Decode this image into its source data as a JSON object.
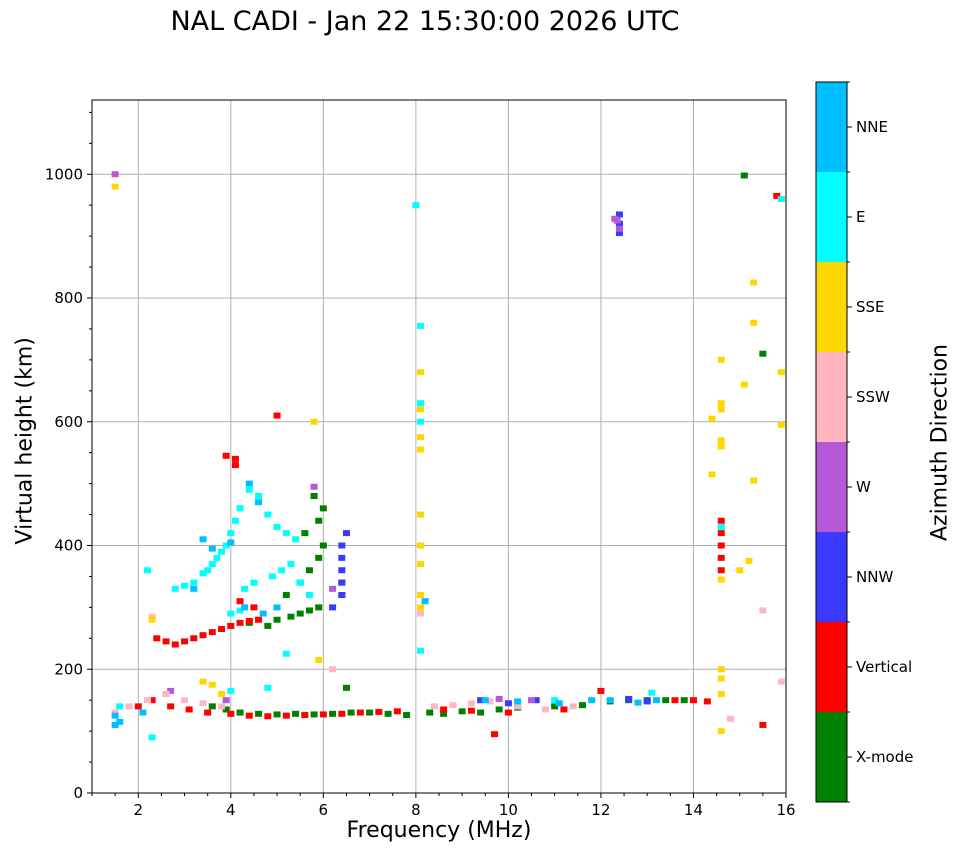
{
  "chart_data": {
    "type": "scatter",
    "title": "NAL CADI - Jan 22 15:30:00 2026 UTC",
    "xlabel": "Frequency (MHz)",
    "ylabel": "Virtual height (km)",
    "xlim": [
      1,
      16
    ],
    "ylim": [
      0,
      1120
    ],
    "xticks": [
      2,
      4,
      6,
      8,
      10,
      12,
      14,
      16
    ],
    "yticks": [
      0,
      200,
      400,
      600,
      800,
      1000
    ],
    "grid": true,
    "colorbar": {
      "label": "Azimuth Direction",
      "categories": [
        "X-mode",
        "Vertical",
        "NNW",
        "W",
        "SSW",
        "SSE",
        "E",
        "NNE"
      ],
      "colors": [
        "#008000",
        "#ff0000",
        "#3a3aff",
        "#b45ad8",
        "#ffb6c1",
        "#ffd700",
        "#00ffff",
        "#00bfff"
      ]
    },
    "series": [
      {
        "name": "X-mode",
        "points": [
          [
            3.6,
            140
          ],
          [
            3.9,
            135
          ],
          [
            4.2,
            130
          ],
          [
            4.6,
            128
          ],
          [
            5.0,
            127
          ],
          [
            5.4,
            128
          ],
          [
            5.8,
            127
          ],
          [
            6.2,
            128
          ],
          [
            6.6,
            130
          ],
          [
            7.0,
            130
          ],
          [
            7.4,
            128
          ],
          [
            7.8,
            126
          ],
          [
            8.3,
            130
          ],
          [
            8.6,
            128
          ],
          [
            9.0,
            132
          ],
          [
            9.4,
            130
          ],
          [
            9.8,
            135
          ],
          [
            10.2,
            138
          ],
          [
            11.0,
            140
          ],
          [
            11.6,
            142
          ],
          [
            12.2,
            148
          ],
          [
            12.6,
            150
          ],
          [
            13.0,
            150
          ],
          [
            13.4,
            150
          ],
          [
            13.8,
            150
          ],
          [
            5.0,
            280
          ],
          [
            5.3,
            285
          ],
          [
            5.5,
            290
          ],
          [
            5.7,
            295
          ],
          [
            5.9,
            300
          ],
          [
            5.2,
            320
          ],
          [
            5.5,
            340
          ],
          [
            5.7,
            360
          ],
          [
            5.9,
            380
          ],
          [
            6.0,
            400
          ],
          [
            5.6,
            420
          ],
          [
            5.9,
            440
          ],
          [
            6.0,
            460
          ],
          [
            5.8,
            480
          ],
          [
            6.4,
            320
          ],
          [
            6.4,
            340
          ],
          [
            4.8,
            270
          ],
          [
            4.4,
            275
          ],
          [
            15.1,
            998
          ],
          [
            15.5,
            710
          ],
          [
            6.5,
            170
          ]
        ]
      },
      {
        "name": "Vertical",
        "points": [
          [
            2.4,
            250
          ],
          [
            2.6,
            245
          ],
          [
            2.8,
            240
          ],
          [
            3.0,
            245
          ],
          [
            3.2,
            250
          ],
          [
            3.4,
            255
          ],
          [
            3.6,
            260
          ],
          [
            3.8,
            265
          ],
          [
            4.0,
            270
          ],
          [
            4.2,
            275
          ],
          [
            4.4,
            278
          ],
          [
            4.6,
            280
          ],
          [
            2.0,
            140
          ],
          [
            2.3,
            150
          ],
          [
            2.7,
            140
          ],
          [
            3.1,
            135
          ],
          [
            3.5,
            130
          ],
          [
            4.0,
            128
          ],
          [
            4.4,
            125
          ],
          [
            4.8,
            124
          ],
          [
            5.2,
            125
          ],
          [
            5.6,
            126
          ],
          [
            6.0,
            127
          ],
          [
            6.4,
            128
          ],
          [
            6.8,
            130
          ],
          [
            7.2,
            131
          ],
          [
            7.6,
            132
          ],
          [
            8.6,
            135
          ],
          [
            9.2,
            133
          ],
          [
            10.0,
            130
          ],
          [
            11.2,
            135
          ],
          [
            12.0,
            165
          ],
          [
            13.6,
            150
          ],
          [
            14.0,
            150
          ],
          [
            14.3,
            148
          ],
          [
            3.9,
            545
          ],
          [
            4.1,
            540
          ],
          [
            5.0,
            610
          ],
          [
            4.2,
            310
          ],
          [
            4.5,
            300
          ],
          [
            14.6,
            440
          ],
          [
            14.6,
            420
          ],
          [
            14.6,
            400
          ],
          [
            14.6,
            380
          ],
          [
            14.6,
            360
          ],
          [
            15.8,
            965
          ],
          [
            15.5,
            110
          ],
          [
            9.7,
            95
          ],
          [
            4.1,
            530
          ]
        ]
      },
      {
        "name": "NNW",
        "points": [
          [
            6.5,
            420
          ],
          [
            6.4,
            400
          ],
          [
            6.4,
            380
          ],
          [
            6.4,
            360
          ],
          [
            6.4,
            340
          ],
          [
            6.4,
            320
          ],
          [
            6.2,
            300
          ],
          [
            9.4,
            150
          ],
          [
            10.0,
            145
          ],
          [
            10.6,
            150
          ],
          [
            12.4,
            935
          ],
          [
            12.4,
            920
          ],
          [
            12.4,
            905
          ],
          [
            13.0,
            148
          ],
          [
            12.6,
            152
          ]
        ]
      },
      {
        "name": "W",
        "points": [
          [
            12.3,
            928
          ],
          [
            12.4,
            912
          ],
          [
            12.35,
            925
          ],
          [
            10.5,
            150
          ],
          [
            9.8,
            152
          ],
          [
            3.9,
            150
          ],
          [
            2.7,
            165
          ],
          [
            1.5,
            1000
          ],
          [
            5.8,
            495
          ],
          [
            6.2,
            330
          ]
        ]
      },
      {
        "name": "SSW",
        "points": [
          [
            1.5,
            130
          ],
          [
            1.8,
            140
          ],
          [
            2.2,
            150
          ],
          [
            2.6,
            160
          ],
          [
            3.0,
            150
          ],
          [
            3.4,
            145
          ],
          [
            3.8,
            140
          ],
          [
            8.4,
            140
          ],
          [
            8.8,
            142
          ],
          [
            9.2,
            145
          ],
          [
            9.6,
            148
          ],
          [
            10.2,
            140
          ],
          [
            10.8,
            135
          ],
          [
            11.4,
            140
          ],
          [
            15.5,
            295
          ],
          [
            15.9,
            180
          ],
          [
            14.8,
            120
          ],
          [
            8.1,
            290
          ],
          [
            6.2,
            200
          ],
          [
            2.3,
            285
          ]
        ]
      },
      {
        "name": "SSE",
        "points": [
          [
            1.5,
            980
          ],
          [
            3.4,
            180
          ],
          [
            3.6,
            175
          ],
          [
            3.8,
            160
          ],
          [
            8.1,
            680
          ],
          [
            8.1,
            620
          ],
          [
            8.1,
            575
          ],
          [
            8.1,
            555
          ],
          [
            8.1,
            450
          ],
          [
            8.1,
            400
          ],
          [
            8.1,
            370
          ],
          [
            8.1,
            320
          ],
          [
            8.1,
            300
          ],
          [
            14.6,
            700
          ],
          [
            14.6,
            630
          ],
          [
            14.6,
            620
          ],
          [
            14.6,
            570
          ],
          [
            14.6,
            560
          ],
          [
            14.4,
            605
          ],
          [
            14.4,
            515
          ],
          [
            14.6,
            345
          ],
          [
            14.6,
            200
          ],
          [
            14.6,
            185
          ],
          [
            14.6,
            160
          ],
          [
            14.6,
            100
          ],
          [
            15.0,
            360
          ],
          [
            15.2,
            375
          ],
          [
            15.3,
            825
          ],
          [
            15.3,
            760
          ],
          [
            15.1,
            660
          ],
          [
            15.3,
            505
          ],
          [
            15.9,
            680
          ],
          [
            15.9,
            595
          ],
          [
            5.8,
            600
          ],
          [
            5.9,
            215
          ],
          [
            2.3,
            280
          ]
        ]
      },
      {
        "name": "E",
        "points": [
          [
            2.8,
            330
          ],
          [
            3.0,
            335
          ],
          [
            3.2,
            340
          ],
          [
            3.4,
            355
          ],
          [
            3.5,
            360
          ],
          [
            3.6,
            370
          ],
          [
            3.7,
            380
          ],
          [
            3.8,
            390
          ],
          [
            3.9,
            400
          ],
          [
            4.0,
            420
          ],
          [
            4.1,
            440
          ],
          [
            4.2,
            460
          ],
          [
            4.4,
            490
          ],
          [
            4.6,
            480
          ],
          [
            4.8,
            450
          ],
          [
            5.0,
            430
          ],
          [
            5.2,
            420
          ],
          [
            5.4,
            410
          ],
          [
            4.3,
            330
          ],
          [
            4.5,
            340
          ],
          [
            4.9,
            350
          ],
          [
            5.1,
            360
          ],
          [
            5.3,
            370
          ],
          [
            5.5,
            340
          ],
          [
            5.7,
            320
          ],
          [
            4.0,
            290
          ],
          [
            4.2,
            295
          ],
          [
            2.2,
            360
          ],
          [
            1.6,
            140
          ],
          [
            8.1,
            755
          ],
          [
            8.1,
            630
          ],
          [
            8.1,
            600
          ],
          [
            8.1,
            230
          ],
          [
            8.0,
            950
          ],
          [
            14.6,
            430
          ],
          [
            4.8,
            170
          ],
          [
            11.0,
            150
          ],
          [
            15.9,
            960
          ],
          [
            5.2,
            225
          ],
          [
            4.0,
            165
          ],
          [
            2.3,
            90
          ],
          [
            13.1,
            162
          ]
        ]
      },
      {
        "name": "NNE",
        "points": [
          [
            3.2,
            330
          ],
          [
            3.4,
            410
          ],
          [
            3.6,
            395
          ],
          [
            4.0,
            405
          ],
          [
            4.4,
            500
          ],
          [
            4.6,
            470
          ],
          [
            4.3,
            300
          ],
          [
            4.7,
            290
          ],
          [
            5.0,
            300
          ],
          [
            1.5,
            125
          ],
          [
            1.6,
            115
          ],
          [
            1.5,
            110
          ],
          [
            2.1,
            130
          ],
          [
            9.5,
            150
          ],
          [
            10.2,
            148
          ],
          [
            11.1,
            145
          ],
          [
            11.8,
            150
          ],
          [
            12.2,
            150
          ],
          [
            12.8,
            146
          ],
          [
            13.2,
            150
          ],
          [
            8.2,
            310
          ]
        ]
      }
    ]
  }
}
